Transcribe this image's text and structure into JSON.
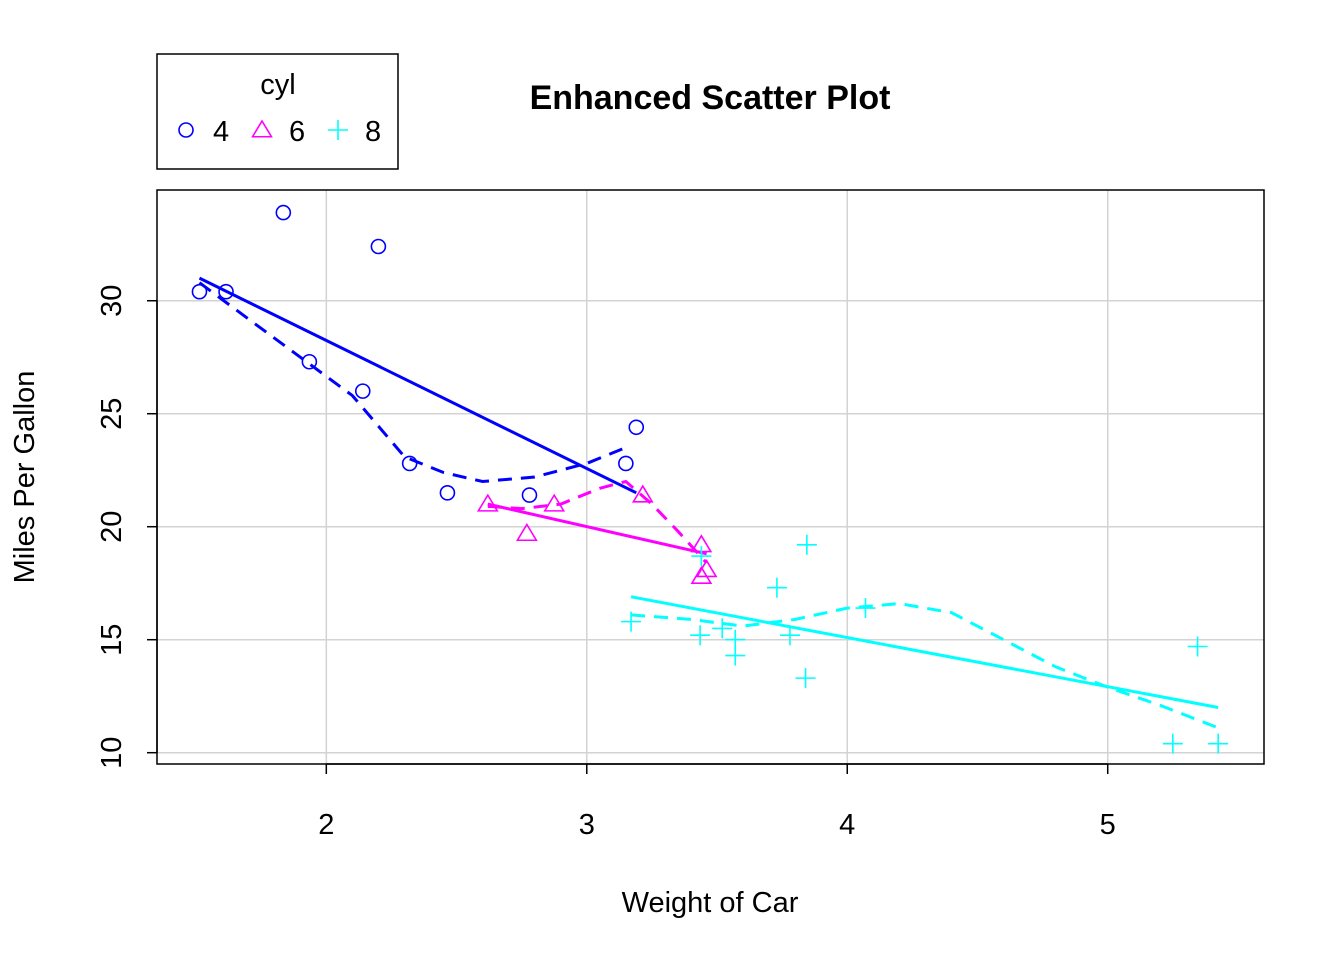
{
  "chart_data": {
    "type": "scatter",
    "title": "Enhanced Scatter Plot",
    "xlabel": "Weight of Car",
    "ylabel": "Miles Per Gallon",
    "xlim": [
      1.35,
      5.6
    ],
    "ylim": [
      9.5,
      34.9
    ],
    "x_ticks": [
      2,
      3,
      4,
      5
    ],
    "y_ticks": [
      10,
      15,
      20,
      25,
      30
    ],
    "grid": true,
    "legend": {
      "title": "cyl",
      "placement": "top-left, outside plot",
      "entries": [
        "4",
        "6",
        "8"
      ]
    },
    "series": [
      {
        "name": "4",
        "marker": "circle",
        "color": "#0000ff",
        "points": [
          [
            1.513,
            30.4
          ],
          [
            1.615,
            30.4
          ],
          [
            1.835,
            33.9
          ],
          [
            1.935,
            27.3
          ],
          [
            2.14,
            26.0
          ],
          [
            2.2,
            32.4
          ],
          [
            2.32,
            22.8
          ],
          [
            2.465,
            21.5
          ],
          [
            2.78,
            21.4
          ],
          [
            3.15,
            22.8
          ],
          [
            3.19,
            24.4
          ]
        ],
        "linear_fit": [
          [
            1.513,
            31.0
          ],
          [
            3.19,
            21.5
          ]
        ],
        "smooth_fit": [
          [
            1.513,
            30.8
          ],
          [
            1.7,
            29.2
          ],
          [
            1.9,
            27.5
          ],
          [
            2.1,
            25.8
          ],
          [
            2.3,
            23.1
          ],
          [
            2.45,
            22.4
          ],
          [
            2.6,
            22.0
          ],
          [
            2.8,
            22.2
          ],
          [
            3.0,
            22.8
          ],
          [
            3.15,
            23.5
          ]
        ]
      },
      {
        "name": "6",
        "marker": "triangle",
        "color": "#ff00ff",
        "points": [
          [
            2.62,
            21.0
          ],
          [
            2.77,
            19.7
          ],
          [
            2.875,
            21.0
          ],
          [
            3.215,
            21.4
          ],
          [
            3.44,
            19.2
          ],
          [
            3.44,
            17.8
          ],
          [
            3.46,
            18.1
          ]
        ],
        "linear_fit": [
          [
            2.62,
            21.0
          ],
          [
            3.46,
            18.8
          ]
        ],
        "smooth_fit": [
          [
            2.62,
            20.9
          ],
          [
            2.75,
            20.8
          ],
          [
            2.9,
            21.0
          ],
          [
            3.05,
            21.7
          ],
          [
            3.15,
            22.0
          ],
          [
            3.25,
            21.0
          ],
          [
            3.35,
            19.8
          ],
          [
            3.46,
            18.4
          ]
        ]
      },
      {
        "name": "8",
        "marker": "plus",
        "color": "#00ffff",
        "points": [
          [
            3.17,
            15.8
          ],
          [
            3.435,
            15.2
          ],
          [
            3.44,
            18.7
          ],
          [
            3.52,
            15.5
          ],
          [
            3.57,
            15.0
          ],
          [
            3.57,
            14.3
          ],
          [
            3.73,
            17.3
          ],
          [
            3.78,
            15.2
          ],
          [
            3.84,
            13.3
          ],
          [
            3.845,
            19.2
          ],
          [
            4.07,
            16.4
          ],
          [
            5.25,
            10.4
          ],
          [
            5.345,
            14.7
          ],
          [
            5.424,
            10.4
          ]
        ],
        "linear_fit": [
          [
            3.17,
            16.9
          ],
          [
            5.424,
            12.0
          ]
        ],
        "smooth_fit": [
          [
            3.17,
            16.1
          ],
          [
            3.4,
            15.9
          ],
          [
            3.6,
            15.6
          ],
          [
            3.8,
            15.9
          ],
          [
            4.0,
            16.4
          ],
          [
            4.2,
            16.6
          ],
          [
            4.4,
            16.2
          ],
          [
            4.6,
            15.0
          ],
          [
            4.8,
            13.8
          ],
          [
            5.0,
            12.9
          ],
          [
            5.2,
            12.1
          ],
          [
            5.424,
            11.1
          ]
        ]
      }
    ]
  }
}
